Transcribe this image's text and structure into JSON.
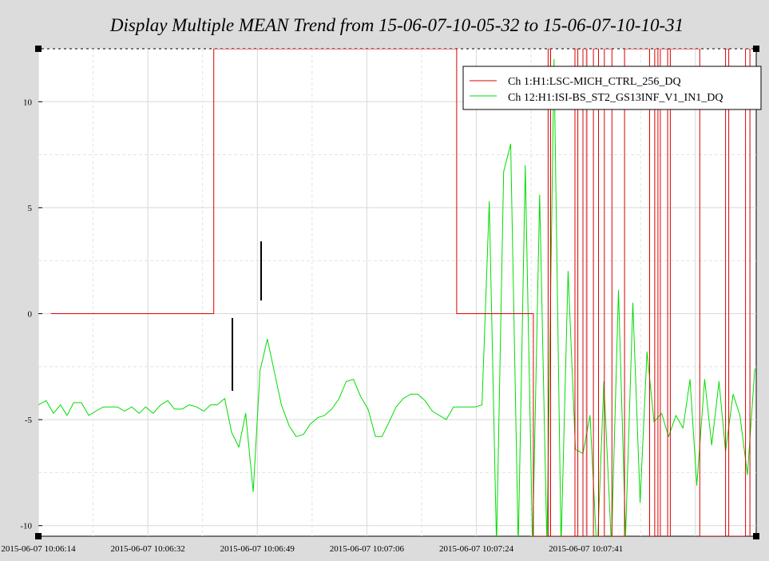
{
  "chart_data": {
    "type": "line",
    "title": "Display Multiple MEAN Trend from 15-06-07-10-05-32 to 15-06-07-10-10-31",
    "xlabel": "",
    "ylabel": "",
    "x_unit": "seconds",
    "x_range": [
      0,
      295
    ],
    "ylim": [
      -10.5,
      12.5
    ],
    "y_ticks": [
      10,
      5,
      0,
      -5,
      -10
    ],
    "x_tick_values": [
      0,
      45,
      90,
      135,
      180,
      225
    ],
    "x_tick_labels": [
      "2015-06-07 10:06:14",
      "2015-06-07 10:06:32",
      "2015-06-07 10:06:49",
      "2015-06-07 10:07:06",
      "2015-06-07 10:07:24",
      "2015-06-07 10:07:41"
    ],
    "grid": true,
    "legend_position": "top-right",
    "series": [
      {
        "name": "Ch 1:H1:LSC-MICH_CTRL_256_DQ",
        "color": "#dd0000",
        "x": [
          5.2,
          72.1,
          72.1,
          171.9,
          171.9,
          203.4,
          203.4,
          209.5,
          209.5,
          210.5,
          210.5,
          220.5,
          220.5,
          221.7,
          221.7,
          223.8,
          223.8,
          225.4,
          225.4,
          228.1,
          228.1,
          230.2,
          230.2,
          232.6,
          232.6,
          235.7,
          235.7,
          240.9,
          240.9,
          251.2,
          251.2,
          253.3,
          253.3,
          254.6,
          254.6,
          255.6,
          255.6,
          258.6,
          258.6,
          259.7,
          259.7,
          271.8,
          271.8,
          282.4,
          282.4,
          283.7,
          283.7,
          290.6,
          290.6,
          292.4,
          292.4
        ],
        "values": [
          0,
          0,
          12.5,
          12.5,
          0,
          0,
          -10.5,
          -10.5,
          12.5,
          12.5,
          -10.5,
          -10.5,
          12.5,
          12.5,
          -10.5,
          -10.5,
          12.5,
          12.5,
          -10.5,
          -10.5,
          12.5,
          12.5,
          -10.5,
          -10.5,
          12.5,
          12.5,
          -10.5,
          -10.5,
          12.5,
          12.5,
          -10.5,
          -10.5,
          12.5,
          12.5,
          -10.5,
          -10.5,
          12.5,
          12.5,
          -10.5,
          -10.5,
          12.5,
          12.5,
          -10.5,
          -10.5,
          12.5,
          12.5,
          -10.5,
          -10.5,
          12.5,
          12.5,
          -10.5
        ]
      },
      {
        "name": "Ch 12:H1:ISI-BS_ST2_GS13INF_V1_IN1_DQ",
        "color": "#00dd00",
        "x": [
          0.0,
          3.2,
          6.2,
          9.1,
          11.8,
          14.5,
          17.7,
          20.7,
          23.6,
          26.7,
          29.6,
          32.5,
          35.4,
          38.4,
          41.4,
          44.1,
          47.2,
          50.3,
          53.2,
          55.9,
          59.1,
          62.0,
          65.0,
          68.0,
          70.8,
          73.5,
          76.6,
          79.4,
          82.4,
          85.2,
          88.3,
          91.1,
          94.1,
          97.1,
          99.9,
          103.1,
          106.0,
          108.9,
          111.8,
          114.9,
          117.6,
          120.6,
          123.6,
          126.5,
          129.5,
          132.4,
          135.5,
          138.5,
          141.2,
          144.2,
          147.0,
          150.0,
          153.0,
          155.9,
          158.9,
          161.9,
          164.8,
          167.6,
          170.6,
          173.7,
          176.5,
          179.5,
          182.3,
          185.3,
          188.3,
          191.2,
          194.1,
          197.2,
          200.1,
          203.1,
          206.0,
          209.0,
          211.9,
          214.8,
          217.7,
          220.7,
          223.8,
          226.7,
          229.6,
          232.4,
          235.5,
          238.4,
          241.3,
          244.3,
          247.3,
          250.1,
          253.0,
          256.1,
          259.0,
          262.0,
          264.9,
          267.8,
          270.6,
          273.8,
          276.7,
          279.7,
          282.4,
          285.5,
          288.3,
          291.4,
          294.4
        ],
        "values": [
          -4.3,
          -4.1,
          -4.7,
          -4.3,
          -4.8,
          -4.2,
          -4.2,
          -4.8,
          -4.6,
          -4.4,
          -4.4,
          -4.4,
          -4.6,
          -4.4,
          -4.7,
          -4.4,
          -4.7,
          -4.3,
          -4.1,
          -4.5,
          -4.5,
          -4.3,
          -4.4,
          -4.6,
          -4.3,
          -4.3,
          -4.0,
          -5.6,
          -6.3,
          -4.7,
          -8.4,
          -2.7,
          -1.2,
          -2.8,
          -4.3,
          -5.3,
          -5.8,
          -5.7,
          -5.2,
          -4.9,
          -4.8,
          -4.5,
          -4.0,
          -3.2,
          -3.1,
          -3.9,
          -4.5,
          -5.8,
          -5.8,
          -5.1,
          -4.4,
          -4.0,
          -3.8,
          -3.8,
          -4.1,
          -4.6,
          -4.8,
          -5.0,
          -4.4,
          -4.4,
          -4.4,
          -4.4,
          -4.3,
          5.3,
          -11.0,
          6.7,
          8.0,
          -11.0,
          7.0,
          -11.0,
          5.6,
          -11.0,
          12.0,
          -11.0,
          2.0,
          -6.4,
          -6.6,
          -4.8,
          -11.5,
          -3.2,
          -11.0,
          1.1,
          -10.5,
          0.5,
          -8.9,
          -1.8,
          -5.1,
          -4.7,
          -5.8,
          -4.8,
          -5.4,
          -3.1,
          -8.1,
          -3.1,
          -6.2,
          -3.2,
          -6.5,
          -3.8,
          -4.8,
          -7.6,
          -2.6
        ]
      }
    ]
  }
}
